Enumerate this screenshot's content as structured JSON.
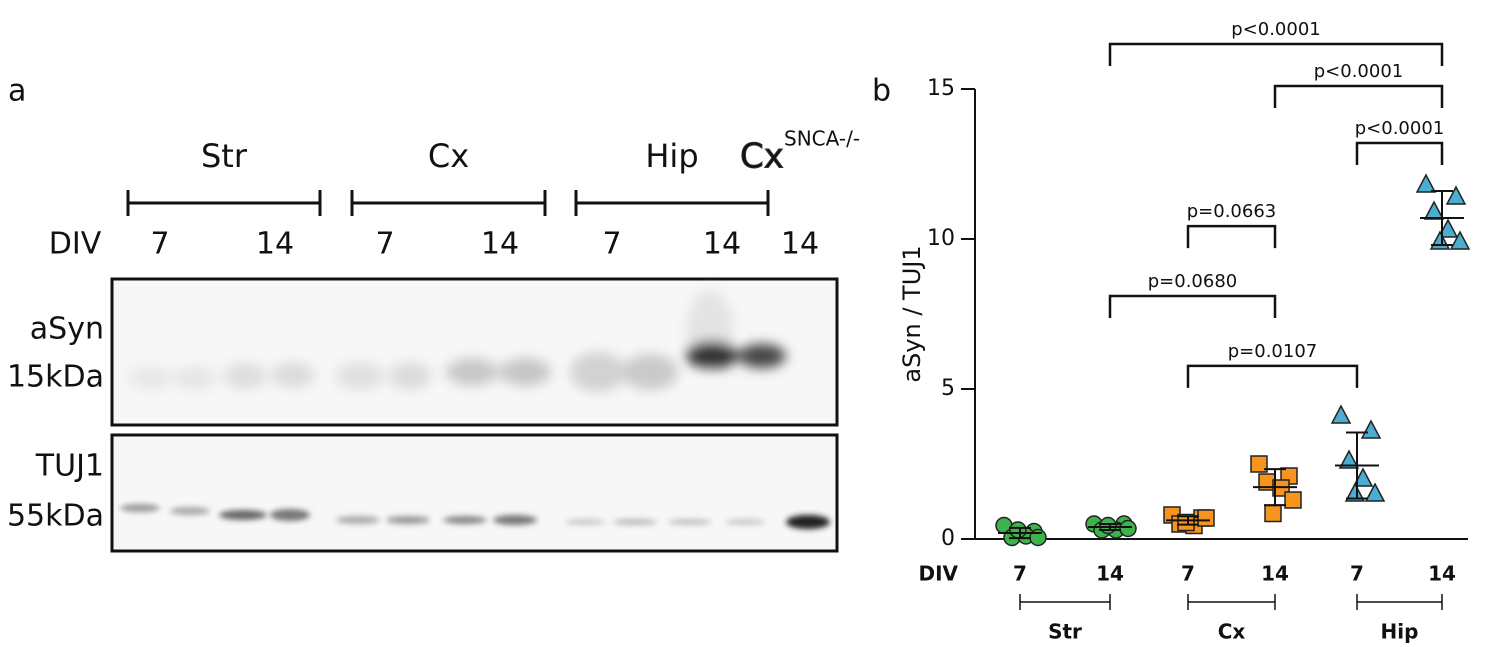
{
  "blot": {
    "panel_label": "a",
    "groups": [
      {
        "label": "Str",
        "color": "#3db54a"
      },
      {
        "label": "Cx",
        "color": "#f7931e"
      },
      {
        "label": "Hip",
        "color": "#4bacc6"
      }
    ],
    "knockout": {
      "label": "Cx",
      "superscript": "SNCA-/-",
      "color": "#f2e205"
    },
    "div_label": "DIV",
    "lanes": [
      "7",
      "14",
      "7",
      "14",
      "7",
      "14",
      "14"
    ],
    "rows": [
      {
        "label": "aSyn",
        "size": "15kDa"
      },
      {
        "label": "TUJ1",
        "size": "55kDa"
      }
    ]
  },
  "chart_data": {
    "type": "scatter",
    "panel_label": "b",
    "ylabel": "aSyn / TUJ1",
    "x_label": "DIV",
    "categories": [
      "7",
      "14",
      "7",
      "14",
      "7",
      "14"
    ],
    "ylim": [
      0,
      15
    ],
    "yticks": [
      0,
      5,
      10,
      15
    ],
    "series": [
      {
        "color": "#3cb44b",
        "marker": "circle",
        "values": [
          0.45,
          0.25,
          0.05,
          0.1,
          0.05,
          0.3
        ],
        "mean": 0.2,
        "sd": 0.17
      },
      {
        "color": "#3cb44b",
        "marker": "circle",
        "values": [
          0.5,
          0.5,
          0.3,
          0.3,
          0.35,
          0.45
        ],
        "mean": 0.4,
        "sd": 0.1
      },
      {
        "color": "#f7941d",
        "marker": "square",
        "values": [
          0.8,
          0.7,
          0.5,
          0.45,
          0.7,
          0.55
        ],
        "mean": 0.62,
        "sd": 0.14
      },
      {
        "color": "#f7941d",
        "marker": "square",
        "values": [
          2.5,
          2.1,
          1.9,
          1.7,
          1.3,
          0.85
        ],
        "mean": 1.73,
        "sd": 0.6
      },
      {
        "color": "#4aaed0",
        "marker": "triangle",
        "values": [
          4.1,
          3.6,
          2.6,
          2.0,
          1.5,
          1.5
        ],
        "mean": 2.45,
        "sd": 1.1
      },
      {
        "color": "#4aaed0",
        "marker": "triangle",
        "values": [
          11.8,
          11.4,
          10.9,
          10.3,
          9.9,
          9.9
        ],
        "mean": 10.7,
        "sd": 0.9
      }
    ],
    "groups": [
      {
        "name": "Str",
        "color": "#3aaa35",
        "span": [
          0,
          1
        ]
      },
      {
        "name": "Cx",
        "color": "#f7931e",
        "span": [
          2,
          3
        ]
      },
      {
        "name": "Hip",
        "color": "#4ba9c8",
        "span": [
          4,
          5
        ]
      }
    ],
    "comparisons": [
      {
        "from": 1,
        "to": 5,
        "y": 16.5,
        "label": "p<0.0001"
      },
      {
        "from": 3,
        "to": 5,
        "y": 15.1,
        "label": "p<0.0001"
      },
      {
        "from": 4,
        "to": 5,
        "y": 13.2,
        "label": "p<0.0001"
      },
      {
        "from": 2,
        "to": 3,
        "y": 10.43,
        "label": "p=0.0663"
      },
      {
        "from": 1,
        "to": 3,
        "y": 8.1,
        "label": "p=0.0680"
      },
      {
        "from": 2,
        "to": 4,
        "y": 5.77,
        "label": "p=0.0107"
      }
    ]
  }
}
